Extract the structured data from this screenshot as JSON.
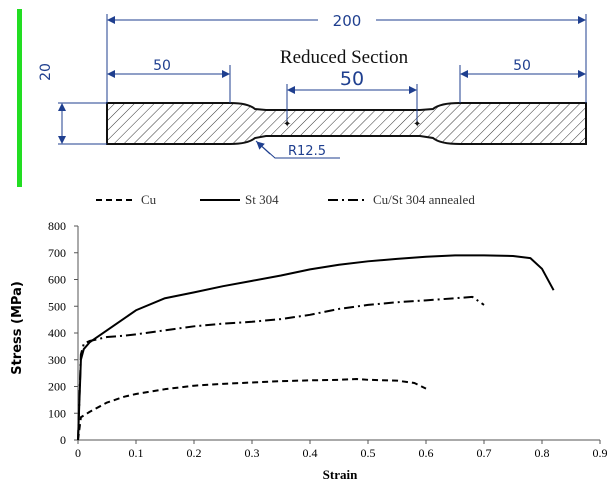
{
  "specimen": {
    "title": "Reduced Section",
    "dim_total": "200",
    "dim_left": "50",
    "dim_right": "50",
    "dim_center": "50",
    "dim_height": "20",
    "dim_radius": "R12.5",
    "accent_color": "#22dd22",
    "line_color": "#1f3f8f"
  },
  "chart_data": {
    "type": "line",
    "xlabel": "Strain",
    "ylabel": "Stress (MPa)",
    "xlim": [
      0,
      0.9
    ],
    "ylim": [
      0,
      800
    ],
    "xticks": [
      "0",
      "0.1",
      "0.2",
      "0.3",
      "0.4",
      "0.5",
      "0.6",
      "0.7",
      "0.8",
      "0.9"
    ],
    "yticks": [
      "0",
      "100",
      "200",
      "300",
      "400",
      "500",
      "600",
      "700",
      "800"
    ],
    "grid": false,
    "legend_position": "top",
    "series": [
      {
        "name": "Cu",
        "style": "dashed",
        "x": [
          0,
          0.005,
          0.02,
          0.05,
          0.08,
          0.1,
          0.15,
          0.2,
          0.25,
          0.3,
          0.35,
          0.4,
          0.45,
          0.48,
          0.5,
          0.55,
          0.58,
          0.6
        ],
        "y": [
          0,
          85,
          105,
          140,
          162,
          172,
          190,
          203,
          210,
          215,
          220,
          223,
          225,
          228,
          225,
          222,
          213,
          192
        ]
      },
      {
        "name": "St 304",
        "style": "solid",
        "x": [
          0,
          0.005,
          0.01,
          0.02,
          0.05,
          0.08,
          0.1,
          0.15,
          0.2,
          0.25,
          0.3,
          0.35,
          0.4,
          0.45,
          0.5,
          0.55,
          0.6,
          0.65,
          0.7,
          0.75,
          0.78,
          0.8,
          0.82
        ],
        "y": [
          0,
          300,
          340,
          365,
          410,
          455,
          485,
          530,
          552,
          575,
          595,
          615,
          638,
          655,
          668,
          677,
          685,
          690,
          690,
          688,
          680,
          640,
          560
        ]
      },
      {
        "name": "Cu/St 304 annealed",
        "style": "dash-dot",
        "x": [
          0,
          0.005,
          0.01,
          0.02,
          0.05,
          0.08,
          0.1,
          0.15,
          0.2,
          0.25,
          0.3,
          0.35,
          0.4,
          0.45,
          0.5,
          0.55,
          0.6,
          0.65,
          0.68,
          0.7
        ],
        "y": [
          0,
          320,
          360,
          370,
          385,
          390,
          395,
          410,
          425,
          435,
          442,
          452,
          468,
          490,
          505,
          515,
          522,
          530,
          535,
          505
        ]
      }
    ]
  }
}
